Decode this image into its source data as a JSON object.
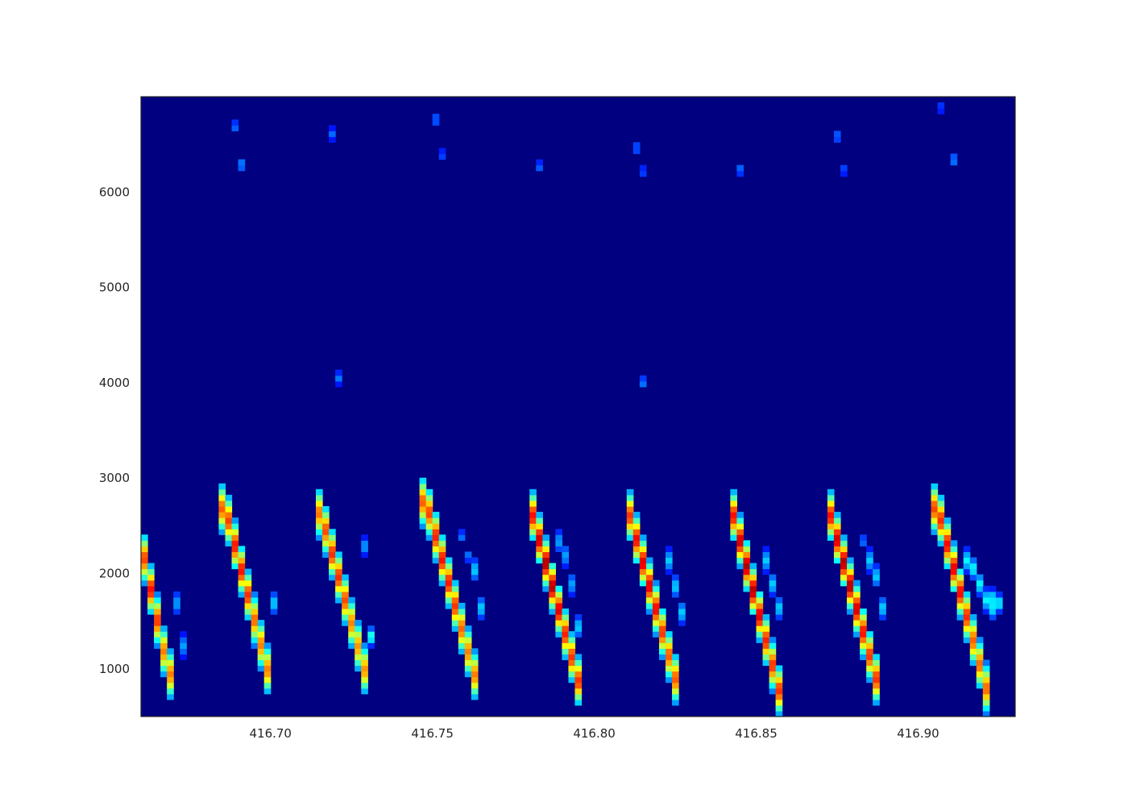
{
  "chart_data": {
    "type": "heatmap",
    "title": "",
    "xlabel": "",
    "ylabel": "",
    "xlim": [
      416.66,
      416.93
    ],
    "ylim": [
      500,
      7000
    ],
    "x_ticks": [
      416.7,
      416.75,
      416.8,
      416.85,
      416.9
    ],
    "x_tick_labels": [
      "416.70",
      "416.75",
      "416.80",
      "416.85",
      "416.90"
    ],
    "y_ticks": [
      1000,
      2000,
      3000,
      4000,
      5000,
      6000
    ],
    "y_tick_labels": [
      "1000",
      "2000",
      "3000",
      "4000",
      "5000",
      "6000"
    ],
    "colormap": "jet",
    "background_color": "#000080",
    "time_step": 0.002,
    "freq_step": 60,
    "description": "spectrogram with repeated descending chirps",
    "events": [
      {
        "t0": 416.6605,
        "f0": 2250,
        "t1": 416.6685,
        "f1": 950,
        "intensity": 0.85,
        "width": 550
      },
      {
        "t0": 416.686,
        "f0": 2700,
        "t1": 416.699,
        "f1": 1000,
        "intensity": 0.85,
        "width": 550
      },
      {
        "t0": 416.7155,
        "f0": 2650,
        "t1": 416.729,
        "f1": 1000,
        "intensity": 0.82,
        "width": 550
      },
      {
        "t0": 416.748,
        "f0": 2770,
        "t1": 416.764,
        "f1": 820,
        "intensity": 0.85,
        "width": 550
      },
      {
        "t0": 416.781,
        "f0": 2620,
        "t1": 416.795,
        "f1": 880,
        "intensity": 0.95,
        "width": 550
      },
      {
        "t0": 416.811,
        "f0": 2620,
        "t1": 416.826,
        "f1": 780,
        "intensity": 0.9,
        "width": 550
      },
      {
        "t0": 416.843,
        "f0": 2620,
        "t1": 416.857,
        "f1": 780,
        "intensity": 0.95,
        "width": 550
      },
      {
        "t0": 416.873,
        "f0": 2620,
        "t1": 416.888,
        "f1": 780,
        "intensity": 0.95,
        "width": 550
      },
      {
        "t0": 416.906,
        "f0": 2700,
        "t1": 416.921,
        "f1": 800,
        "intensity": 0.88,
        "width": 550
      },
      {
        "t0": 416.671,
        "f0": 1700,
        "t1": 416.672,
        "f1": 1250,
        "intensity": 0.2,
        "width": 250
      },
      {
        "t0": 416.701,
        "f0": 1700,
        "t1": 416.702,
        "f1": 1250,
        "intensity": 0.25,
        "width": 250
      },
      {
        "t0": 416.73,
        "f0": 2450,
        "t1": 416.73,
        "f1": 2150,
        "intensity": 0.2,
        "width": 200
      },
      {
        "t0": 416.731,
        "f0": 1500,
        "t1": 416.731,
        "f1": 1200,
        "intensity": 0.35,
        "width": 200
      },
      {
        "t0": 416.76,
        "f0": 2400,
        "t1": 416.761,
        "f1": 2200,
        "intensity": 0.15,
        "width": 150
      },
      {
        "t0": 416.763,
        "f0": 2050,
        "t1": 416.765,
        "f1": 1650,
        "intensity": 0.25,
        "width": 250
      },
      {
        "t0": 416.79,
        "f0": 2350,
        "t1": 416.793,
        "f1": 1900,
        "intensity": 0.2,
        "width": 250
      },
      {
        "t0": 416.796,
        "f0": 1750,
        "t1": 416.796,
        "f1": 1150,
        "intensity": 0.25,
        "width": 250
      },
      {
        "t0": 416.823,
        "f0": 2150,
        "t1": 416.827,
        "f1": 1600,
        "intensity": 0.25,
        "width": 250
      },
      {
        "t0": 416.853,
        "f0": 2150,
        "t1": 416.857,
        "f1": 1650,
        "intensity": 0.25,
        "width": 250
      },
      {
        "t0": 416.884,
        "f0": 2450,
        "t1": 416.884,
        "f1": 2250,
        "intensity": 0.15,
        "width": 150
      },
      {
        "t0": 416.886,
        "f0": 2150,
        "t1": 416.889,
        "f1": 1650,
        "intensity": 0.25,
        "width": 250
      },
      {
        "t0": 416.916,
        "f0": 2150,
        "t1": 416.922,
        "f1": 1650,
        "intensity": 0.3,
        "width": 250
      },
      {
        "t0": 416.924,
        "f0": 1750,
        "t1": 416.925,
        "f1": 1700,
        "intensity": 0.3,
        "width": 200
      },
      {
        "t0": 416.6885,
        "f0": 6950,
        "t1": 416.6895,
        "f1": 6500,
        "intensity": 0.14,
        "width": 150
      },
      {
        "t0": 416.6915,
        "f0": 6500,
        "t1": 416.6915,
        "f1": 6150,
        "intensity": 0.18,
        "width": 150
      },
      {
        "t0": 416.7185,
        "f0": 6800,
        "t1": 416.7185,
        "f1": 6500,
        "intensity": 0.14,
        "width": 150
      },
      {
        "t0": 416.721,
        "f0": 4200,
        "t1": 416.721,
        "f1": 3950,
        "intensity": 0.16,
        "width": 150
      },
      {
        "t0": 416.7505,
        "f0": 6950,
        "t1": 416.7505,
        "f1": 6650,
        "intensity": 0.14,
        "width": 150
      },
      {
        "t0": 416.753,
        "f0": 6550,
        "t1": 416.753,
        "f1": 6300,
        "intensity": 0.1,
        "width": 150
      },
      {
        "t0": 416.783,
        "f0": 6450,
        "t1": 416.783,
        "f1": 6150,
        "intensity": 0.13,
        "width": 150
      },
      {
        "t0": 416.813,
        "f0": 6650,
        "t1": 416.813,
        "f1": 6350,
        "intensity": 0.13,
        "width": 150
      },
      {
        "t0": 416.8155,
        "f0": 6400,
        "t1": 416.8155,
        "f1": 6100,
        "intensity": 0.1,
        "width": 150
      },
      {
        "t0": 416.8155,
        "f0": 4100,
        "t1": 416.8155,
        "f1": 3950,
        "intensity": 0.16,
        "width": 150
      },
      {
        "t0": 416.845,
        "f0": 6450,
        "t1": 416.845,
        "f1": 6100,
        "intensity": 0.14,
        "width": 150
      },
      {
        "t0": 416.875,
        "f0": 6800,
        "t1": 416.875,
        "f1": 6450,
        "intensity": 0.14,
        "width": 150
      },
      {
        "t0": 416.8775,
        "f0": 6400,
        "t1": 416.8775,
        "f1": 6150,
        "intensity": 0.1,
        "width": 150
      },
      {
        "t0": 416.907,
        "f0": 6950,
        "t1": 416.907,
        "f1": 6900,
        "intensity": 0.12,
        "width": 100
      },
      {
        "t0": 416.91,
        "f0": 6600,
        "t1": 416.91,
        "f1": 6150,
        "intensity": 0.17,
        "width": 150
      }
    ]
  }
}
